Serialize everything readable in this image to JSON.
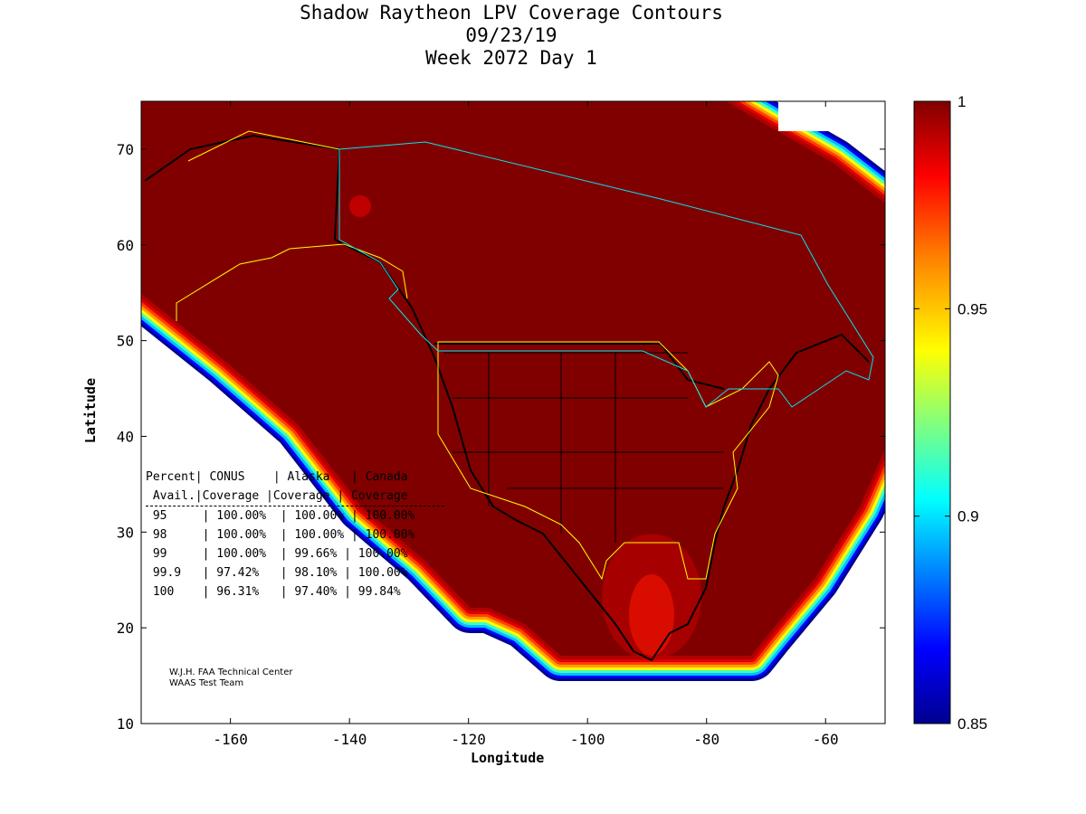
{
  "title": {
    "line1": "Shadow Raytheon LPV Coverage Contours",
    "line2": "09/23/19",
    "line3": "Week 2072 Day 1"
  },
  "chart_data": {
    "type": "heatmap",
    "title": "Shadow Raytheon LPV Coverage Contours",
    "xlabel": "Longitude",
    "ylabel": "Latitude",
    "xlim": [
      -175,
      -50
    ],
    "ylim": [
      10,
      75
    ],
    "xticks": [
      -160,
      -140,
      -120,
      -100,
      -80,
      -60
    ],
    "yticks": [
      10,
      20,
      30,
      40,
      50,
      60,
      70
    ],
    "colorbar": {
      "range": [
        0.85,
        1
      ],
      "ticks": [
        "1",
        "0.95",
        "0.9",
        "0.85"
      ],
      "colors": [
        "#00008f",
        "#0000ff",
        "#00ffff",
        "#ffff00",
        "#ff8000",
        "#ff0000",
        "#800000"
      ]
    },
    "table": {
      "header1": [
        "Percent",
        "CONUS",
        "Alaska",
        "Canada"
      ],
      "header2": [
        "Avail.",
        "Coverage",
        "Coverage",
        "Coverage"
      ],
      "rows": [
        [
          "95",
          "100.00%",
          "100.00%",
          "100.00%"
        ],
        [
          "98",
          "100.00%",
          "100.00%",
          "100.00%"
        ],
        [
          "99",
          "100.00%",
          "99.66%",
          "100.00%"
        ],
        [
          "99.9",
          "97.42%",
          "98.10%",
          "100.00%"
        ],
        [
          "100",
          "96.31%",
          "97.40%",
          "99.84%"
        ]
      ]
    }
  },
  "credit": {
    "line1": "W.J.H. FAA Technical Center",
    "line2": "WAAS Test Team"
  }
}
